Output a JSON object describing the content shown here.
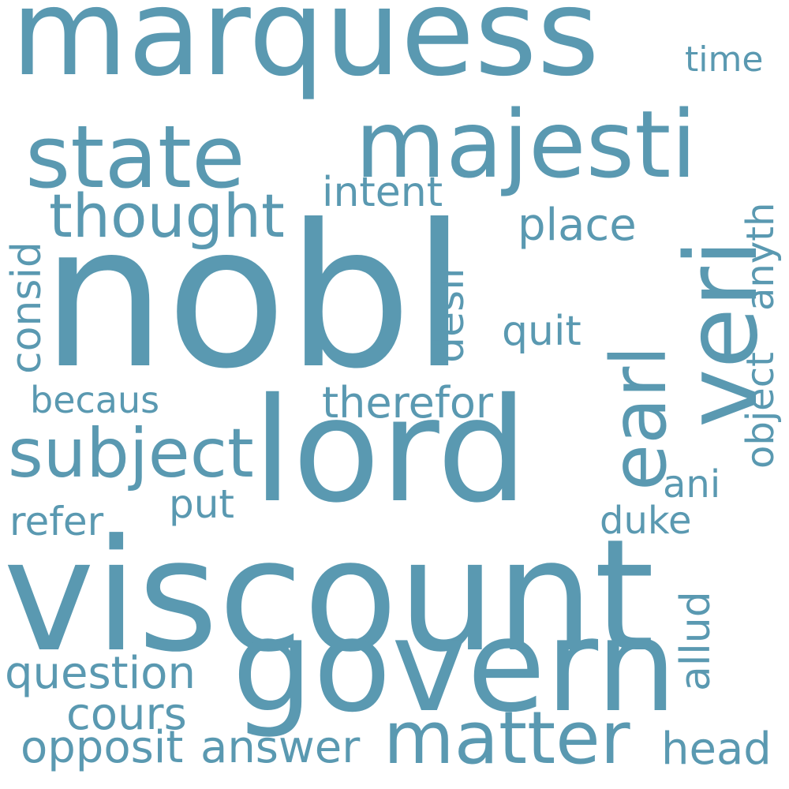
{
  "colors": {
    "background": "#ffffff",
    "word": "#5a99b1"
  },
  "words": {
    "nobl": "nobl",
    "viscount": "viscount",
    "marquess": "marquess",
    "lord": "lord",
    "govern": "govern",
    "majesti": "majesti",
    "state": "state",
    "veri": "veri",
    "earl": "earl",
    "matter": "matter",
    "subject": "subject",
    "thought": "thought",
    "intent": "intent",
    "place": "place",
    "time": "time",
    "consid": "consid",
    "desir": "desir",
    "quit": "quit",
    "anyth": "anyth",
    "object": "object",
    "therefor": "therefor",
    "becaus": "becaus",
    "ani": "ani",
    "refer": "refer",
    "put": "put",
    "duke": "duke",
    "allud": "allud",
    "question": "question",
    "cours": "cours",
    "opposit": "opposit",
    "answer": "answer",
    "head": "head"
  }
}
